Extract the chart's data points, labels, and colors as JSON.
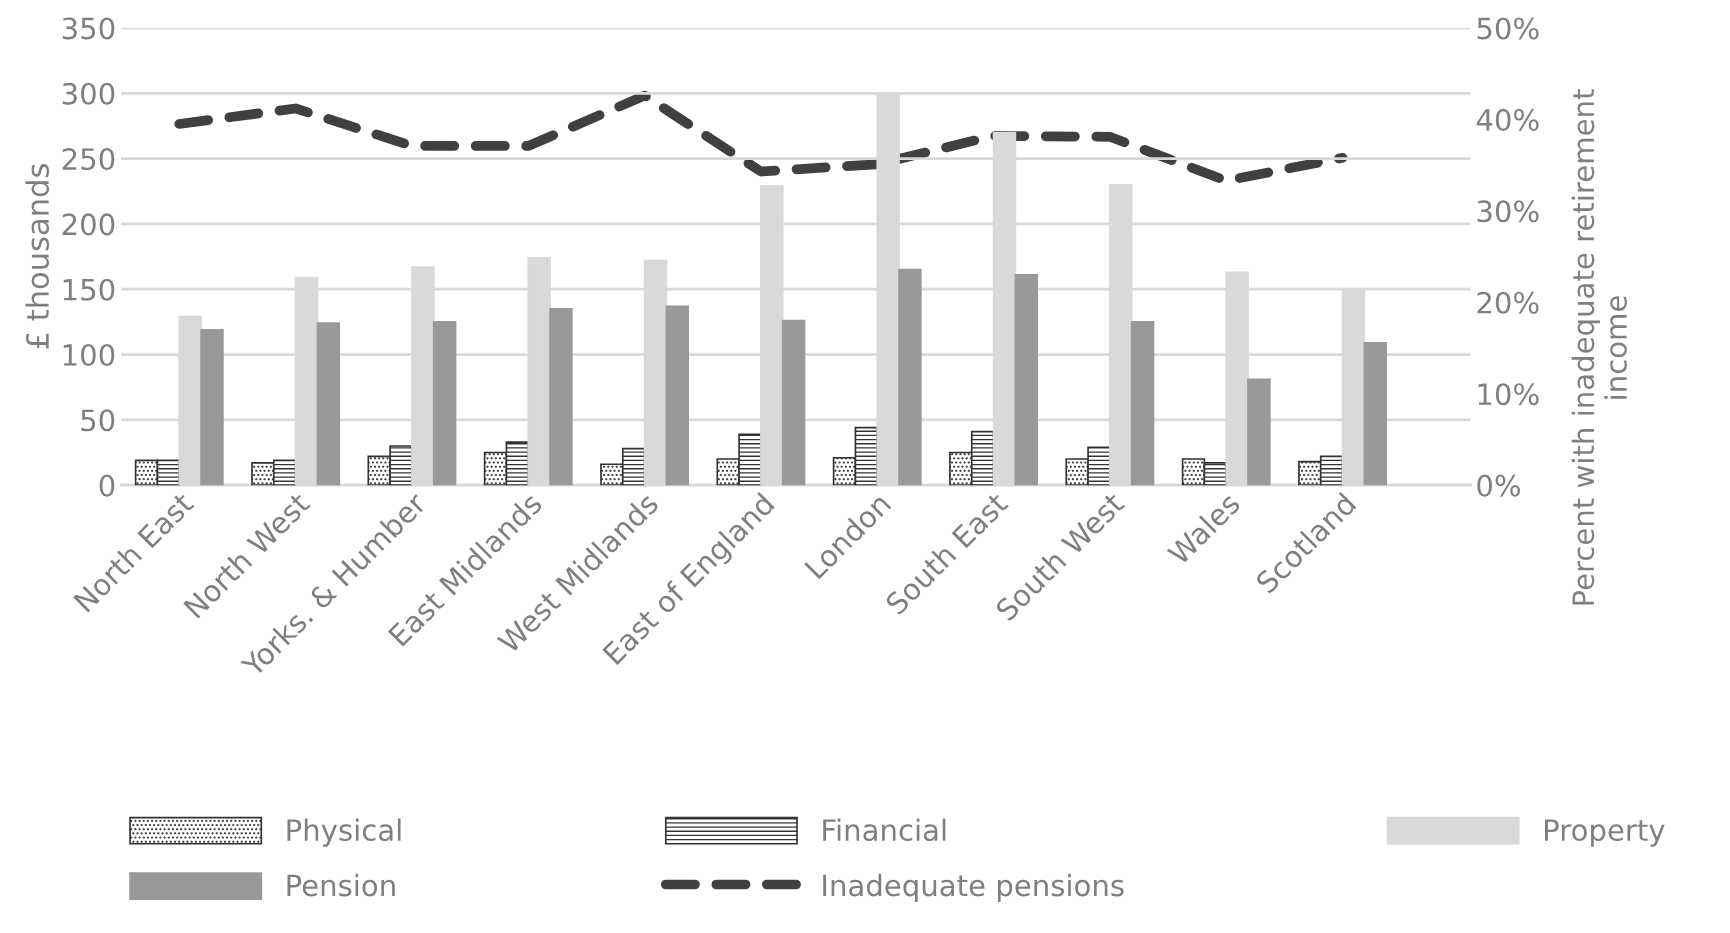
{
  "chart_data": {
    "type": "bar",
    "categories": [
      "North East",
      "North West",
      "Yorks. & Humber",
      "East Midlands",
      "West Midlands",
      "East of England",
      "London",
      "South East",
      "South West",
      "Wales",
      "Scotland"
    ],
    "ylabel": "£ thousands",
    "y2label": "Percent with inadequate retirement\nincome",
    "ylim": [
      0,
      350
    ],
    "yticks": [
      0,
      50,
      100,
      150,
      200,
      250,
      300,
      350
    ],
    "y2lim": [
      0,
      50
    ],
    "y2ticks": [
      {
        "value": 0,
        "label": "0%"
      },
      {
        "value": 10,
        "label": "10%"
      },
      {
        "value": 20,
        "label": "20%"
      },
      {
        "value": 30,
        "label": "30%"
      },
      {
        "value": 40,
        "label": "40%"
      },
      {
        "value": 50,
        "label": "50%"
      }
    ],
    "grid": "y",
    "legend": "bottom",
    "series": [
      {
        "name": "Physical",
        "color": "#333333",
        "values": [
          19,
          17,
          22,
          25,
          16,
          20,
          21,
          25,
          20,
          20,
          18
        ]
      },
      {
        "name": "Financial",
        "color": "#333333",
        "values": [
          19,
          19,
          30,
          33,
          28,
          39,
          44,
          41,
          29,
          17,
          22
        ]
      },
      {
        "name": "Property",
        "color": "#d9d9d9",
        "values": [
          129,
          159,
          167,
          174,
          172,
          229,
          299,
          270,
          230,
          163,
          149
        ]
      },
      {
        "name": "Pension",
        "color": "#999999",
        "values": [
          119,
          124,
          125,
          135,
          137,
          126,
          165,
          161,
          125,
          81,
          109
        ]
      },
      {
        "name": "Inadequate pensions",
        "type": "line",
        "axis": "y2",
        "line_style": "dashed",
        "marker": "none",
        "color": "#404040",
        "values": [
          39.5,
          41.2,
          37.1,
          37.1,
          42.6,
          34.3,
          35.1,
          38.2,
          38.1,
          33.3,
          35.8
        ]
      }
    ]
  }
}
